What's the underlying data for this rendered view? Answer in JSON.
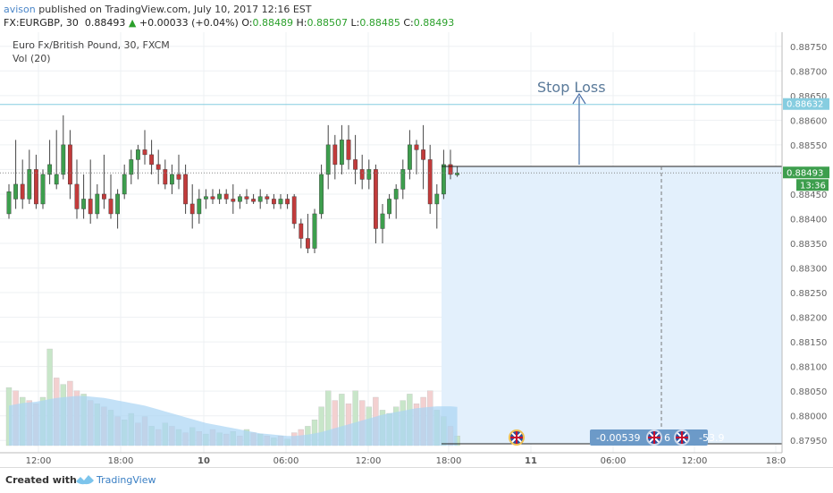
{
  "header": {
    "user": "avison",
    "published": "published on TradingView.com, July 10, 2017 12:16 EST",
    "symbol": "FX:EURGBP, 30",
    "last": "0.88493",
    "change": "+0.00033 (+0.04%)",
    "open_label": "O:",
    "open": "0.88489",
    "high_label": "H:",
    "high": "0.88507",
    "low_label": "L:",
    "low": "0.88485",
    "close_label": "C:",
    "close": "0.88493"
  },
  "legend": {
    "title": "Euro Fx/British Pound, 30, FXCM",
    "vol": "Vol (20)"
  },
  "colors": {
    "up": "#3d9e4d",
    "down": "#c23b3b",
    "volUp": "#c8e6c9",
    "volDown": "#f3d0d0",
    "volMA": "#a9d4f3",
    "accent": "#6c9ac8",
    "stop": "#86cde0"
  },
  "chart_data": {
    "type": "candlestick",
    "title": "Euro Fx/British Pound, 30, FXCM",
    "symbol": "FX:EURGBP",
    "interval": "30",
    "ylim": [
      0.87925,
      0.88775
    ],
    "y_ticks": [
      "0.88750",
      "0.88700",
      "0.88650",
      "0.88600",
      "0.88550",
      "0.88500",
      "0.88450",
      "0.88400",
      "0.88350",
      "0.88300",
      "0.88250",
      "0.88200",
      "0.88150",
      "0.88100",
      "0.88050",
      "0.88000",
      "0.87950"
    ],
    "x_ticks": [
      "12:00",
      "18:00",
      "10",
      "06:00",
      "12:00",
      "18:00",
      "11",
      "06:00",
      "12:00",
      "18:0"
    ],
    "candles": [
      {
        "o": 0.8841,
        "h": 0.8847,
        "l": 0.884,
        "c": 0.88455
      },
      {
        "o": 0.8844,
        "h": 0.8856,
        "l": 0.8842,
        "c": 0.8847
      },
      {
        "o": 0.8847,
        "h": 0.8852,
        "l": 0.8842,
        "c": 0.8844
      },
      {
        "o": 0.8844,
        "h": 0.8854,
        "l": 0.8843,
        "c": 0.885
      },
      {
        "o": 0.885,
        "h": 0.8853,
        "l": 0.8842,
        "c": 0.8843
      },
      {
        "o": 0.8843,
        "h": 0.885,
        "l": 0.8842,
        "c": 0.8849
      },
      {
        "o": 0.8849,
        "h": 0.8856,
        "l": 0.8847,
        "c": 0.8851
      },
      {
        "o": 0.8847,
        "h": 0.8858,
        "l": 0.8846,
        "c": 0.8849
      },
      {
        "o": 0.8849,
        "h": 0.8861,
        "l": 0.8848,
        "c": 0.8855
      },
      {
        "o": 0.8855,
        "h": 0.8858,
        "l": 0.8844,
        "c": 0.8847
      },
      {
        "o": 0.8847,
        "h": 0.8852,
        "l": 0.884,
        "c": 0.8842
      },
      {
        "o": 0.8842,
        "h": 0.8849,
        "l": 0.884,
        "c": 0.8844
      },
      {
        "o": 0.8844,
        "h": 0.8852,
        "l": 0.8839,
        "c": 0.8841
      },
      {
        "o": 0.8841,
        "h": 0.8847,
        "l": 0.884,
        "c": 0.8845
      },
      {
        "o": 0.8845,
        "h": 0.8853,
        "l": 0.8842,
        "c": 0.8844
      },
      {
        "o": 0.8844,
        "h": 0.8849,
        "l": 0.884,
        "c": 0.8841
      },
      {
        "o": 0.8841,
        "h": 0.8846,
        "l": 0.8838,
        "c": 0.8845
      },
      {
        "o": 0.8845,
        "h": 0.8851,
        "l": 0.8844,
        "c": 0.8849
      },
      {
        "o": 0.8849,
        "h": 0.8854,
        "l": 0.8847,
        "c": 0.8852
      },
      {
        "o": 0.8852,
        "h": 0.8855,
        "l": 0.8848,
        "c": 0.8854
      },
      {
        "o": 0.8854,
        "h": 0.8858,
        "l": 0.8851,
        "c": 0.8853
      },
      {
        "o": 0.8853,
        "h": 0.8856,
        "l": 0.8849,
        "c": 0.8851
      },
      {
        "o": 0.8851,
        "h": 0.8854,
        "l": 0.8847,
        "c": 0.885
      },
      {
        "o": 0.885,
        "h": 0.8852,
        "l": 0.8846,
        "c": 0.8847
      },
      {
        "o": 0.8847,
        "h": 0.8851,
        "l": 0.8845,
        "c": 0.8849
      },
      {
        "o": 0.8849,
        "h": 0.8853,
        "l": 0.8846,
        "c": 0.8848
      },
      {
        "o": 0.8849,
        "h": 0.8851,
        "l": 0.8841,
        "c": 0.8843
      },
      {
        "o": 0.8843,
        "h": 0.8847,
        "l": 0.8838,
        "c": 0.8841
      },
      {
        "o": 0.8841,
        "h": 0.8846,
        "l": 0.8839,
        "c": 0.8844
      },
      {
        "o": 0.8844,
        "h": 0.8846,
        "l": 0.8842,
        "c": 0.88445
      },
      {
        "o": 0.88445,
        "h": 0.8846,
        "l": 0.8843,
        "c": 0.8844
      },
      {
        "o": 0.8844,
        "h": 0.8846,
        "l": 0.8843,
        "c": 0.8845
      },
      {
        "o": 0.8845,
        "h": 0.8846,
        "l": 0.8843,
        "c": 0.8844
      },
      {
        "o": 0.8844,
        "h": 0.8847,
        "l": 0.8841,
        "c": 0.88435
      },
      {
        "o": 0.88435,
        "h": 0.8845,
        "l": 0.8842,
        "c": 0.88445
      },
      {
        "o": 0.88445,
        "h": 0.8846,
        "l": 0.8843,
        "c": 0.8844
      },
      {
        "o": 0.8844,
        "h": 0.8845,
        "l": 0.8843,
        "c": 0.88435
      },
      {
        "o": 0.88435,
        "h": 0.8846,
        "l": 0.8842,
        "c": 0.88445
      },
      {
        "o": 0.88445,
        "h": 0.8845,
        "l": 0.8843,
        "c": 0.8844
      },
      {
        "o": 0.8844,
        "h": 0.8845,
        "l": 0.8842,
        "c": 0.8843
      },
      {
        "o": 0.8843,
        "h": 0.8845,
        "l": 0.8842,
        "c": 0.8844
      },
      {
        "o": 0.8844,
        "h": 0.8845,
        "l": 0.8842,
        "c": 0.8843
      },
      {
        "o": 0.88445,
        "h": 0.8845,
        "l": 0.8838,
        "c": 0.8839
      },
      {
        "o": 0.8839,
        "h": 0.884,
        "l": 0.8834,
        "c": 0.8836
      },
      {
        "o": 0.8836,
        "h": 0.8841,
        "l": 0.8833,
        "c": 0.8834
      },
      {
        "o": 0.8834,
        "h": 0.8842,
        "l": 0.8833,
        "c": 0.8841
      },
      {
        "o": 0.8841,
        "h": 0.8851,
        "l": 0.884,
        "c": 0.8849
      },
      {
        "o": 0.8849,
        "h": 0.8859,
        "l": 0.8846,
        "c": 0.8855
      },
      {
        "o": 0.8855,
        "h": 0.8857,
        "l": 0.8848,
        "c": 0.8851
      },
      {
        "o": 0.8851,
        "h": 0.8859,
        "l": 0.8849,
        "c": 0.8856
      },
      {
        "o": 0.8856,
        "h": 0.8859,
        "l": 0.885,
        "c": 0.8852
      },
      {
        "o": 0.8852,
        "h": 0.8857,
        "l": 0.8847,
        "c": 0.885
      },
      {
        "o": 0.885,
        "h": 0.8853,
        "l": 0.8846,
        "c": 0.8848
      },
      {
        "o": 0.8848,
        "h": 0.8852,
        "l": 0.8846,
        "c": 0.885
      },
      {
        "o": 0.885,
        "h": 0.8851,
        "l": 0.8835,
        "c": 0.8838
      },
      {
        "o": 0.8838,
        "h": 0.8843,
        "l": 0.8835,
        "c": 0.8841
      },
      {
        "o": 0.8841,
        "h": 0.8845,
        "l": 0.884,
        "c": 0.8844
      },
      {
        "o": 0.8844,
        "h": 0.8847,
        "l": 0.884,
        "c": 0.8846
      },
      {
        "o": 0.8846,
        "h": 0.8852,
        "l": 0.8844,
        "c": 0.885
      },
      {
        "o": 0.885,
        "h": 0.8858,
        "l": 0.8848,
        "c": 0.8855
      },
      {
        "o": 0.8855,
        "h": 0.8856,
        "l": 0.8849,
        "c": 0.8854
      },
      {
        "o": 0.8854,
        "h": 0.8859,
        "l": 0.8846,
        "c": 0.8852
      },
      {
        "o": 0.8852,
        "h": 0.8855,
        "l": 0.8841,
        "c": 0.8843
      },
      {
        "o": 0.8843,
        "h": 0.8847,
        "l": 0.8838,
        "c": 0.8845
      },
      {
        "o": 0.8845,
        "h": 0.8854,
        "l": 0.8844,
        "c": 0.8851
      },
      {
        "o": 0.8851,
        "h": 0.8854,
        "l": 0.8848,
        "c": 0.8849
      },
      {
        "o": 0.88489,
        "h": 0.88507,
        "l": 0.88485,
        "c": 0.88493
      }
    ],
    "volume": [
      {
        "v": 90,
        "up": true
      },
      {
        "v": 85,
        "up": false
      },
      {
        "v": 75,
        "up": true
      },
      {
        "v": 70,
        "up": false
      },
      {
        "v": 65,
        "up": false
      },
      {
        "v": 75,
        "up": true
      },
      {
        "v": 150,
        "up": true
      },
      {
        "v": 105,
        "up": false
      },
      {
        "v": 95,
        "up": true
      },
      {
        "v": 100,
        "up": false
      },
      {
        "v": 85,
        "up": false
      },
      {
        "v": 80,
        "up": true
      },
      {
        "v": 70,
        "up": false
      },
      {
        "v": 65,
        "up": true
      },
      {
        "v": 60,
        "up": false
      },
      {
        "v": 55,
        "up": true
      },
      {
        "v": 45,
        "up": false
      },
      {
        "v": 40,
        "up": true
      },
      {
        "v": 50,
        "up": true
      },
      {
        "v": 35,
        "up": false
      },
      {
        "v": 45,
        "up": false
      },
      {
        "v": 30,
        "up": true
      },
      {
        "v": 25,
        "up": false
      },
      {
        "v": 35,
        "up": true
      },
      {
        "v": 30,
        "up": false
      },
      {
        "v": 25,
        "up": true
      },
      {
        "v": 20,
        "up": false
      },
      {
        "v": 28,
        "up": true
      },
      {
        "v": 22,
        "up": false
      },
      {
        "v": 18,
        "up": true
      },
      {
        "v": 25,
        "up": false
      },
      {
        "v": 20,
        "up": true
      },
      {
        "v": 18,
        "up": false
      },
      {
        "v": 22,
        "up": true
      },
      {
        "v": 15,
        "up": false
      },
      {
        "v": 25,
        "up": true
      },
      {
        "v": 20,
        "up": false
      },
      {
        "v": 18,
        "up": true
      },
      {
        "v": 15,
        "up": false
      },
      {
        "v": 12,
        "up": true
      },
      {
        "v": 15,
        "up": false
      },
      {
        "v": 10,
        "up": true
      },
      {
        "v": 20,
        "up": false
      },
      {
        "v": 25,
        "up": false
      },
      {
        "v": 30,
        "up": true
      },
      {
        "v": 40,
        "up": true
      },
      {
        "v": 60,
        "up": true
      },
      {
        "v": 85,
        "up": true
      },
      {
        "v": 70,
        "up": false
      },
      {
        "v": 80,
        "up": true
      },
      {
        "v": 65,
        "up": false
      },
      {
        "v": 85,
        "up": true
      },
      {
        "v": 70,
        "up": false
      },
      {
        "v": 60,
        "up": true
      },
      {
        "v": 75,
        "up": false
      },
      {
        "v": 55,
        "up": true
      },
      {
        "v": 50,
        "up": true
      },
      {
        "v": 60,
        "up": true
      },
      {
        "v": 70,
        "up": true
      },
      {
        "v": 80,
        "up": true
      },
      {
        "v": 65,
        "up": false
      },
      {
        "v": 75,
        "up": false
      },
      {
        "v": 85,
        "up": false
      },
      {
        "v": 55,
        "up": true
      },
      {
        "v": 45,
        "up": true
      },
      {
        "v": 30,
        "up": false
      },
      {
        "v": 15,
        "up": true
      }
    ],
    "volume_ma": [
      62,
      64,
      66,
      67,
      68,
      70,
      72,
      74,
      75,
      76,
      77,
      77,
      76,
      75,
      74,
      72,
      70,
      68,
      66,
      64,
      62,
      59,
      56,
      53,
      50,
      47,
      44,
      41,
      38,
      35,
      33,
      31,
      29,
      27,
      25,
      23,
      21,
      19,
      18,
      17,
      16,
      15,
      15,
      16,
      17,
      19,
      21,
      24,
      27,
      30,
      33,
      36,
      39,
      42,
      45,
      48,
      50,
      52,
      54,
      56,
      58,
      59,
      60,
      61,
      61,
      61,
      60
    ],
    "stop_loss": {
      "label": "Stop Loss",
      "price": 0.88632,
      "price_label": "0.88632"
    },
    "current_price": {
      "price": 0.88493,
      "price_label": "0.88493",
      "countdown": "13:36"
    },
    "measure": {
      "delta": "-0.00539",
      "mid": "6",
      "pips": "-53.9"
    }
  },
  "footer": {
    "created_with": "Created with",
    "brand": "TradingView"
  }
}
